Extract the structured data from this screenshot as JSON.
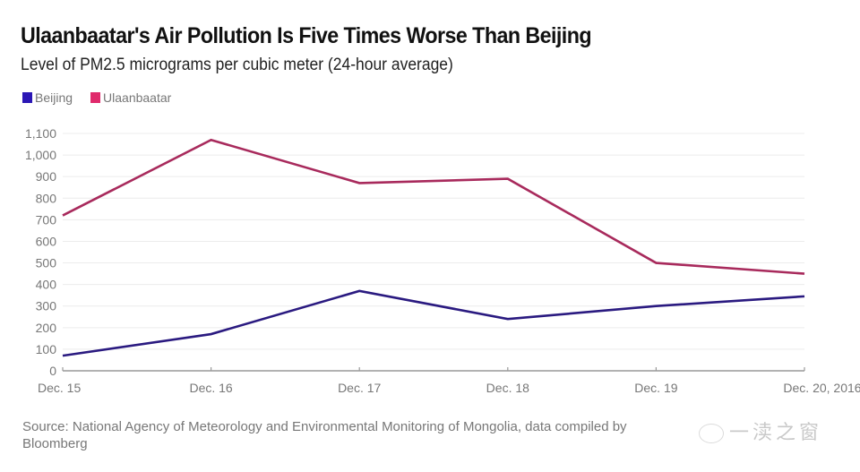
{
  "chart_data": {
    "type": "line",
    "title": "Ulaanbaatar's Air Pollution Is Five Times Worse Than Beijing",
    "subtitle": "Level of PM2.5 micrograms per cubic meter (24-hour average)",
    "xlabel": "",
    "ylabel": "",
    "categories": [
      "Dec. 15",
      "Dec. 16",
      "Dec. 17",
      "Dec. 18",
      "Dec. 19",
      "Dec. 20, 2016"
    ],
    "yticks": [
      0,
      100,
      200,
      300,
      400,
      500,
      600,
      700,
      800,
      900,
      1000,
      1100
    ],
    "ytick_labels": [
      "0",
      "100",
      "200",
      "300",
      "400",
      "500",
      "600",
      "700",
      "800",
      "900",
      "1,000",
      "1,100"
    ],
    "ylim": [
      0,
      1100
    ],
    "grid": true,
    "legend_placement": "top-left",
    "series": [
      {
        "name": "Beijing",
        "color": "#2a1a80",
        "swatch": "#2b17b5",
        "values": [
          70,
          170,
          370,
          240,
          300,
          345
        ]
      },
      {
        "name": "Ulaanbaatar",
        "color": "#a82a5c",
        "swatch": "#e02a6c",
        "values": [
          720,
          1070,
          870,
          890,
          500,
          450
        ]
      }
    ],
    "source": "Source: National Agency of Meteorology and Environmental Monitoring of Mongolia, data compiled by Bloomberg"
  },
  "watermark": {
    "text": "一渎之窗"
  }
}
